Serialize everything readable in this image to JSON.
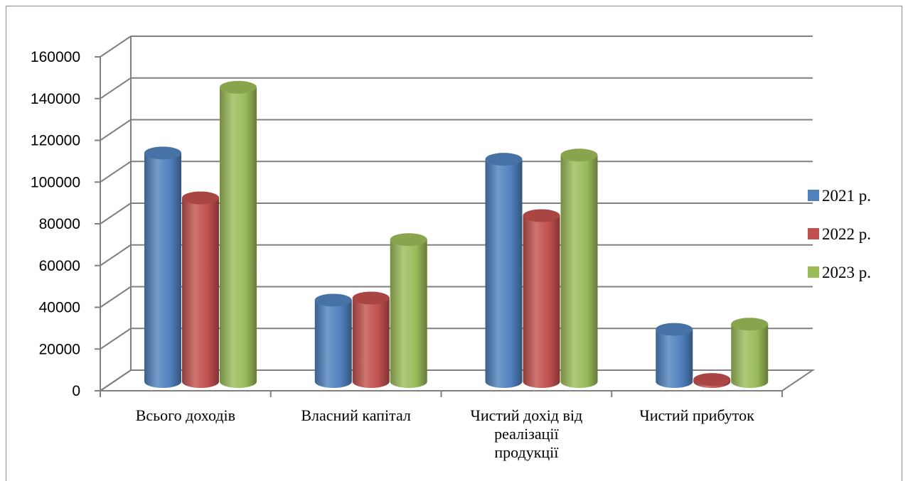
{
  "chart_data": {
    "type": "bar",
    "title": "",
    "xlabel": "",
    "ylabel": "",
    "ylim": [
      0,
      160000
    ],
    "yticks": [
      0,
      20000,
      40000,
      60000,
      80000,
      100000,
      120000,
      140000,
      160000
    ],
    "grid": true,
    "legend_position": "right",
    "categories": [
      [
        "Всього доходів"
      ],
      [
        "Власний капітал"
      ],
      [
        "Чистий дохід від",
        "реалізації",
        "продукції"
      ],
      [
        "Чистий прибуток"
      ]
    ],
    "series": [
      {
        "name": "2021 р.",
        "color": "#4f81bd",
        "values": [
          109500,
          39000,
          106500,
          25000
        ]
      },
      {
        "name": "2022 р.",
        "color": "#c0504d",
        "values": [
          88000,
          40000,
          79500,
          1000
        ]
      },
      {
        "name": "2023 р.",
        "color": "#9bbb59",
        "values": [
          141000,
          68000,
          108500,
          27500
        ]
      }
    ]
  }
}
